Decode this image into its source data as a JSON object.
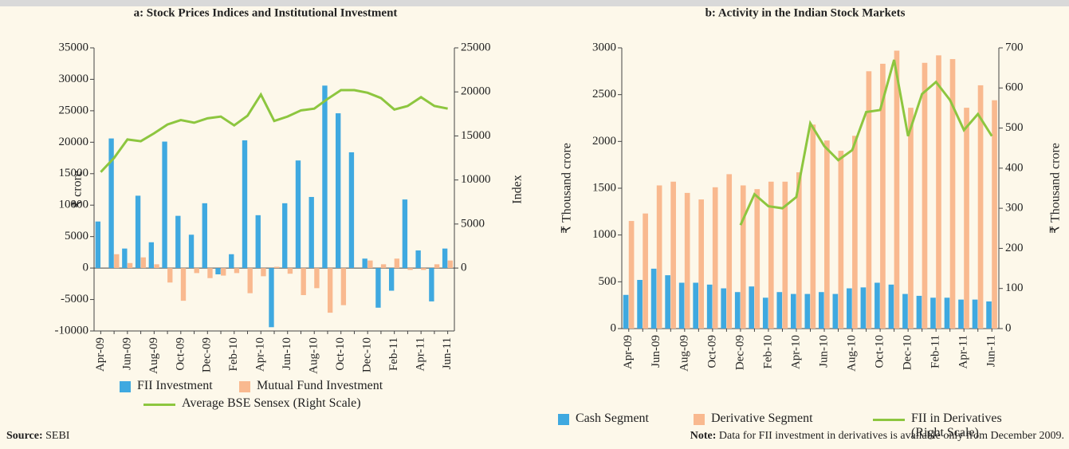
{
  "chart_data": [
    {
      "type": "bar",
      "title": "a: Stock Prices Indices and Institutional Investment",
      "y_label": "₹ crore",
      "y2_label": "Index",
      "categories": [
        "Apr-09",
        null,
        "Jun-09",
        null,
        "Aug-09",
        null,
        "Oct-09",
        null,
        "Dec-09",
        null,
        "Feb-10",
        null,
        "Apr-10",
        null,
        "Jun-10",
        null,
        "Aug-10",
        null,
        "Oct-10",
        null,
        "Dec-10",
        null,
        "Feb-11",
        null,
        "Apr-11",
        null,
        "Jun-11"
      ],
      "series": [
        {
          "name": "FII Investment",
          "type": "bar",
          "color": "#3fa9e0",
          "values": [
            7400,
            20600,
            3100,
            11500,
            4100,
            20100,
            8300,
            5300,
            10300,
            -1000,
            2200,
            20300,
            8400,
            -9400,
            10300,
            17100,
            11300,
            29000,
            24600,
            18400,
            1500,
            -6300,
            -3600,
            10900,
            2800,
            -5300,
            3100
          ]
        },
        {
          "name": "Mutual Fund Investment",
          "type": "bar",
          "color": "#f9b98f",
          "values": [
            0,
            2200,
            800,
            1700,
            600,
            -2300,
            -5200,
            -800,
            -1600,
            -1200,
            -800,
            -4000,
            -1300,
            200,
            -900,
            -4300,
            -3200,
            -7100,
            -5900,
            0,
            1200,
            600,
            1500,
            -300,
            -300,
            600,
            1200
          ]
        },
        {
          "name": "Average BSE Sensex (Right Scale)",
          "type": "line",
          "axis": "y2",
          "color": "#8dc63f",
          "values": [
            10900,
            12500,
            14600,
            14400,
            15300,
            16300,
            16800,
            16500,
            17000,
            17200,
            16200,
            17300,
            19700,
            16700,
            17200,
            17900,
            18100,
            19200,
            20200,
            20200,
            19900,
            19300,
            18000,
            18400,
            19400,
            18400,
            18100
          ]
        }
      ],
      "ylim": [
        -10000,
        35000
      ],
      "yticks": [
        -10000,
        -5000,
        0,
        5000,
        10000,
        15000,
        20000,
        25000,
        30000,
        35000
      ],
      "y2lim": [
        -7143,
        25000
      ],
      "y2ticks": [
        0,
        5000,
        10000,
        15000,
        20000,
        25000
      ],
      "foot_label": "Source:",
      "foot_text": "SEBI"
    },
    {
      "type": "bar",
      "title": "b: Activity in the Indian Stock Markets",
      "y_label": "₹ Thousand crore",
      "y2_label": "₹ Thousand crore",
      "categories": [
        "Apr-09",
        null,
        "Jun-09",
        null,
        "Aug-09",
        null,
        "Oct-09",
        null,
        "Dec-09",
        null,
        "Feb-10",
        null,
        "Apr-10",
        null,
        "Jun-10",
        null,
        "Aug-10",
        null,
        "Oct-10",
        null,
        "Dec-10",
        null,
        "Feb-11",
        null,
        "Apr-11",
        null,
        "Jun-11"
      ],
      "series": [
        {
          "name": "Cash Segment",
          "type": "bar",
          "color": "#3fa9e0",
          "values": [
            360,
            520,
            640,
            570,
            490,
            490,
            470,
            430,
            390,
            450,
            330,
            390,
            370,
            370,
            390,
            370,
            430,
            440,
            490,
            470,
            370,
            350,
            330,
            330,
            310,
            310,
            290
          ]
        },
        {
          "name": "Derivative Segment",
          "type": "bar",
          "color": "#f9b98f",
          "values": [
            1150,
            1230,
            1530,
            1570,
            1450,
            1380,
            1510,
            1650,
            1530,
            1490,
            1570,
            1570,
            1670,
            2180,
            2010,
            1900,
            2060,
            2750,
            2830,
            2970,
            2360,
            2840,
            2920,
            2880,
            2360,
            2600,
            2440
          ]
        },
        {
          "name": "FII in Derivatives (Right Scale)",
          "type": "line",
          "axis": "y2",
          "color": "#8dc63f",
          "values": [
            null,
            null,
            null,
            null,
            null,
            null,
            null,
            null,
            258,
            335,
            305,
            300,
            328,
            512,
            455,
            420,
            445,
            540,
            545,
            670,
            480,
            585,
            615,
            570,
            495,
            535,
            480
          ]
        }
      ],
      "ylim": [
        0,
        3000
      ],
      "yticks": [
        0,
        500,
        1000,
        1500,
        2000,
        2500,
        3000
      ],
      "y2lim": [
        0,
        700
      ],
      "y2ticks": [
        0,
        100,
        200,
        300,
        400,
        500,
        600,
        700
      ],
      "foot_label": "Note:",
      "foot_text": "Data for FII investment in derivatives is available only from December 2009."
    }
  ]
}
